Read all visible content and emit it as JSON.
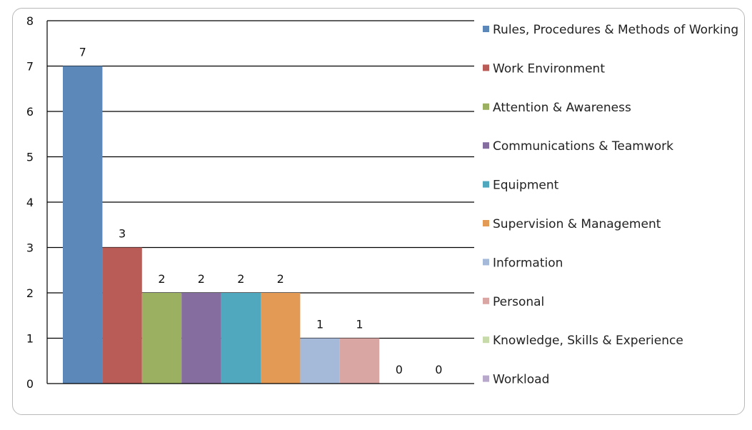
{
  "chart_data": {
    "type": "bar",
    "title": "",
    "xlabel": "",
    "ylabel": "",
    "ylim": [
      0,
      8
    ],
    "yticks": [
      0,
      1,
      2,
      3,
      4,
      5,
      6,
      7,
      8
    ],
    "grid": true,
    "legend_position": "right",
    "series": [
      {
        "name": "Rules, Procedures & Methods of Working",
        "value": 7,
        "color": "#5b87b9"
      },
      {
        "name": "Work Environment",
        "value": 3,
        "color": "#b95c57"
      },
      {
        "name": "Attention & Awareness",
        "value": 2,
        "color": "#9bb161"
      },
      {
        "name": "Communications & Teamwork",
        "value": 2,
        "color": "#856e9f"
      },
      {
        "name": "Equipment",
        "value": 2,
        "color": "#50a8bf"
      },
      {
        "name": "Supervision & Management",
        "value": 2,
        "color": "#e39a55"
      },
      {
        "name": "Information",
        "value": 1,
        "color": "#a5b9d8"
      },
      {
        "name": "Personal",
        "value": 1,
        "color": "#d9a6a4"
      },
      {
        "name": "Knowledge, Skills & Experience",
        "value": 0,
        "color": "#c7dbaa"
      },
      {
        "name": "Workload",
        "value": 0,
        "color": "#b8a8cb"
      }
    ]
  }
}
